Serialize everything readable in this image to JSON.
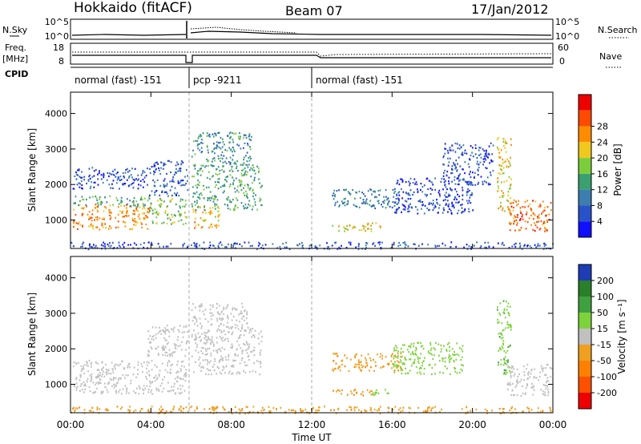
{
  "header": {
    "station": "Hokkaido (fitACF)",
    "beam": "Beam 07",
    "date": "17/Jan/2012"
  },
  "strip": {
    "nsky_label": "N.Sky",
    "nsearch_label": "N.Search",
    "freq_label_1": "Freq.",
    "freq_label_2": "[MHz]",
    "nave_label": "Nave",
    "cpid_label": "CPID",
    "noise_ticks_left": [
      "10^5",
      "10^0"
    ],
    "noise_ticks_right": [
      "10^5",
      "10^0"
    ],
    "freq_ticks": [
      "18",
      "8"
    ],
    "nave_ticks": [
      "60",
      "0"
    ],
    "cpid_segments": [
      {
        "label": "normal (fast) -151",
        "start_h": 0.0,
        "end_h": 5.9
      },
      {
        "label": "pcp -9211",
        "start_h": 5.9,
        "end_h": 12.0
      },
      {
        "label": "normal (fast) -151",
        "start_h": 12.0,
        "end_h": 24.0
      }
    ]
  },
  "chart_data": [
    {
      "type": "heatmap",
      "name": "power",
      "ylabel": "Slant Range [km]",
      "ylim": [
        200,
        4600
      ],
      "xlim": [
        0,
        24
      ],
      "yticks": [
        "1000",
        "2000",
        "3000",
        "4000"
      ],
      "colorbar": {
        "label": "Power [dB]",
        "ticks": [
          "4",
          "8",
          "12",
          "16",
          "20",
          "24",
          "28"
        ],
        "colors": [
          "#1010ff",
          "#2a52c8",
          "#3d7db0",
          "#3aa070",
          "#7ccd3c",
          "#f0c81e",
          "#ff8c00",
          "#ff4a00",
          "#ee0000"
        ]
      },
      "regions": [
        {
          "t0": 0.1,
          "t1": 3.9,
          "r0": 750,
          "r1": 1500,
          "level": 26
        },
        {
          "t0": 0.1,
          "t1": 3.9,
          "r0": 1400,
          "r1": 1700,
          "level": 14
        },
        {
          "t0": 0.1,
          "t1": 3.9,
          "r0": 1900,
          "r1": 2500,
          "level": 6
        },
        {
          "t0": 3.9,
          "t1": 5.8,
          "r0": 900,
          "r1": 1650,
          "level": 18
        },
        {
          "t0": 3.9,
          "t1": 5.8,
          "r0": 1700,
          "r1": 2700,
          "level": 7
        },
        {
          "t0": 6.0,
          "t1": 7.4,
          "r0": 800,
          "r1": 1400,
          "level": 24
        },
        {
          "t0": 6.0,
          "t1": 9.5,
          "r0": 1300,
          "r1": 2600,
          "level": 14
        },
        {
          "t0": 6.0,
          "t1": 9.0,
          "r0": 2600,
          "r1": 3500,
          "level": 12
        },
        {
          "t0": 13.0,
          "t1": 16.5,
          "r0": 1350,
          "r1": 1900,
          "level": 10
        },
        {
          "t0": 16.0,
          "t1": 20.0,
          "r0": 1200,
          "r1": 2200,
          "level": 5
        },
        {
          "t0": 13.0,
          "t1": 15.5,
          "r0": 700,
          "r1": 950,
          "level": 22
        },
        {
          "t0": 18.5,
          "t1": 21.0,
          "r0": 2000,
          "r1": 3200,
          "level": 6
        },
        {
          "t0": 21.2,
          "t1": 21.9,
          "r0": 1200,
          "r1": 3400,
          "level": 22
        },
        {
          "t0": 21.8,
          "t1": 23.9,
          "r0": 700,
          "r1": 1600,
          "level": 28
        },
        {
          "t0": 0.0,
          "t1": 24.0,
          "r0": 200,
          "r1": 400,
          "level": 6
        }
      ]
    },
    {
      "type": "heatmap",
      "name": "velocity",
      "ylabel": "Slant Range [km]",
      "ylim": [
        200,
        4600
      ],
      "xlim": [
        0,
        24
      ],
      "yticks": [
        "1000",
        "2000",
        "3000",
        "4000"
      ],
      "colorbar": {
        "label": "Velocity [m s⁻¹]",
        "ticks": [
          "200",
          "100",
          "50",
          "15",
          "-15",
          "-50",
          "-100",
          "-200"
        ],
        "colors": [
          "#1e3cb4",
          "#2a7f2a",
          "#3fa03f",
          "#7ed23c",
          "#c0c0c0",
          "#f0a020",
          "#ff8000",
          "#ff5000",
          "#ee0000"
        ]
      },
      "regions": [
        {
          "t0": 0.1,
          "t1": 5.8,
          "r0": 750,
          "r1": 1700,
          "level": 0
        },
        {
          "t0": 3.8,
          "t1": 5.8,
          "r0": 1800,
          "r1": 2700,
          "level": 0
        },
        {
          "t0": 6.0,
          "t1": 9.5,
          "r0": 1300,
          "r1": 2600,
          "level": 0
        },
        {
          "t0": 6.0,
          "t1": 8.8,
          "r0": 2600,
          "r1": 3300,
          "level": 0
        },
        {
          "t0": 13.0,
          "t1": 16.5,
          "r0": 1400,
          "r1": 1900,
          "level": -40
        },
        {
          "t0": 16.0,
          "t1": 19.5,
          "r0": 1300,
          "r1": 2200,
          "level": 30
        },
        {
          "t0": 13.0,
          "t1": 15.0,
          "r0": 700,
          "r1": 900,
          "level": -50
        },
        {
          "t0": 15.0,
          "t1": 16.0,
          "r0": 700,
          "r1": 900,
          "level": 30
        },
        {
          "t0": 21.2,
          "t1": 21.9,
          "r0": 1300,
          "r1": 3400,
          "level": 40
        },
        {
          "t0": 21.7,
          "t1": 23.9,
          "r0": 700,
          "r1": 1600,
          "level": 0
        },
        {
          "t0": 0.0,
          "t1": 24.0,
          "r0": 200,
          "r1": 400,
          "level": -40
        }
      ]
    }
  ],
  "xaxis": {
    "label": "Time UT",
    "ticks": [
      "00:00",
      "04:00",
      "08:00",
      "12:00",
      "16:00",
      "20:00",
      "00:00"
    ]
  }
}
